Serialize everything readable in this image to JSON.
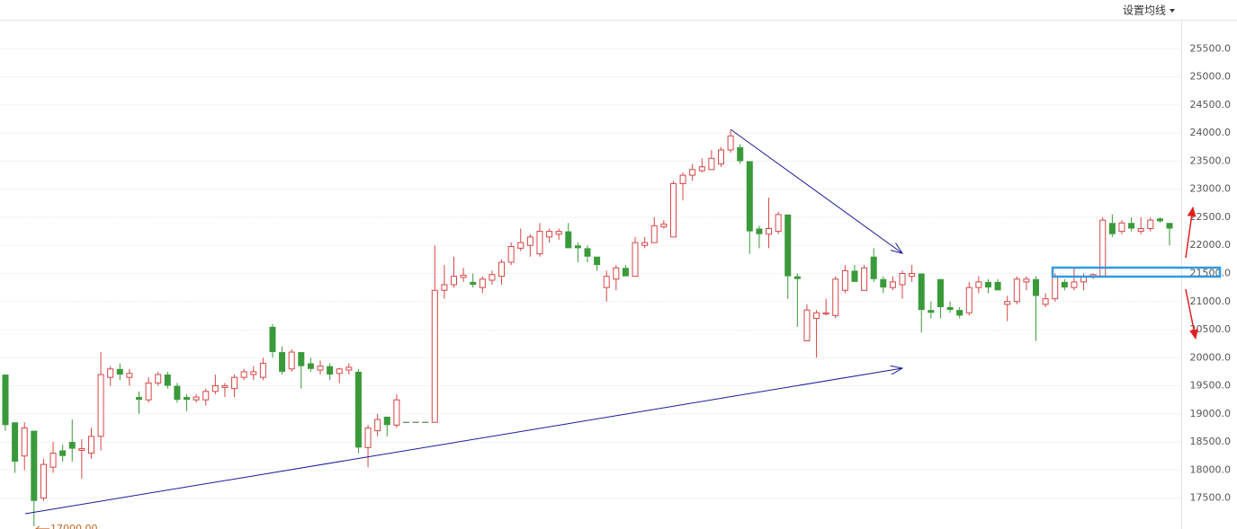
{
  "toolbar_button": "设置均线",
  "chart_data": {
    "type": "candlestick",
    "up_color": "#d64545",
    "down_color": "#3a9a3a",
    "flat_color": "#2f6b2f",
    "grid": true,
    "ylim": [
      16950,
      26370
    ],
    "yticks": [
      {
        "value": 17500,
        "label": "17500.0"
      },
      {
        "value": 18000,
        "label": "18000.0"
      },
      {
        "value": 18500,
        "label": "18500.0"
      },
      {
        "value": 19000,
        "label": "19000.0"
      },
      {
        "value": 19500,
        "label": "19500.0"
      },
      {
        "value": 20000,
        "label": "20000.0"
      },
      {
        "value": 20500,
        "label": "20500.0"
      },
      {
        "value": 21000,
        "label": "21000.0"
      },
      {
        "value": 21500,
        "label": "21500.0"
      },
      {
        "value": 22000,
        "label": "22000.0"
      },
      {
        "value": 22500,
        "label": "22500.0"
      },
      {
        "value": 23000,
        "label": "23000.0"
      },
      {
        "value": 23500,
        "label": "23500.0"
      },
      {
        "value": 24000,
        "label": "24000.0"
      },
      {
        "value": 24500,
        "label": "24500.0"
      },
      {
        "value": 25000,
        "label": "25000.0"
      },
      {
        "value": 25500,
        "label": "25500.0"
      }
    ],
    "min_label": {
      "value": 17000,
      "label": "17000.00"
    },
    "open": [
      19700,
      18850,
      18250,
      18700,
      17500,
      18050,
      18350,
      18500,
      18350,
      18300,
      18600,
      19650,
      19800,
      19650,
      19300,
      19250,
      19550,
      19700,
      19500,
      19300,
      19250,
      19250,
      19400,
      19470,
      19450,
      19650,
      19700,
      19650,
      20550,
      20100,
      19800,
      20100,
      19900,
      19780,
      19850,
      19720,
      19780,
      19750,
      18400,
      18700,
      18950,
      18800,
      18850,
      18850,
      18850,
      18850,
      21200,
      21300,
      21430,
      21350,
      21250,
      21380,
      21450,
      21700,
      21950,
      22000,
      21850,
      22150,
      22200,
      22250,
      22000,
      21950,
      21800,
      21250,
      21400,
      21600,
      21450,
      22000,
      22050,
      22330,
      22150,
      23100,
      23250,
      23330,
      23350,
      23450,
      23700,
      23750,
      23500,
      22300,
      22200,
      22250,
      22550,
      21450,
      20300,
      20700,
      20780,
      20750,
      21200,
      21550,
      21200,
      21800,
      21400,
      21250,
      21300,
      21450,
      21500,
      20850,
      21400,
      20900,
      20850,
      20800,
      21250,
      21350,
      21350,
      20950,
      21000,
      21350,
      21400,
      20950,
      21050,
      21350,
      21250,
      21350,
      21450,
      21450,
      22400,
      22250,
      22400,
      22250,
      22300,
      22480,
      22400
    ],
    "high": [
      19700,
      18850,
      18850,
      18700,
      18200,
      18500,
      18450,
      18900,
      18550,
      18750,
      20100,
      19850,
      19900,
      19800,
      19400,
      19650,
      19750,
      19750,
      19550,
      19350,
      19350,
      19450,
      19700,
      19550,
      19700,
      19800,
      19850,
      20000,
      20600,
      20200,
      20150,
      20100,
      20000,
      19950,
      19900,
      19820,
      19900,
      19800,
      18800,
      19000,
      18950,
      19350,
      18850,
      18850,
      18850,
      22000,
      21650,
      21800,
      21600,
      21500,
      21450,
      21550,
      21750,
      22050,
      22300,
      22200,
      22400,
      22300,
      22300,
      22400,
      22050,
      22000,
      21800,
      21550,
      21650,
      21650,
      22150,
      22150,
      22500,
      22450,
      23150,
      23300,
      23450,
      23550,
      23700,
      23750,
      24050,
      23800,
      23500,
      22350,
      22850,
      22600,
      22550,
      21500,
      20950,
      20850,
      21050,
      21450,
      21650,
      21650,
      21650,
      21950,
      21450,
      21450,
      21550,
      21650,
      21500,
      21000,
      21400,
      21000,
      20900,
      21350,
      21450,
      21400,
      21400,
      21100,
      21450,
      21450,
      21450,
      21150,
      21500,
      21400,
      21600,
      21500,
      21500,
      22500,
      22550,
      22450,
      22500,
      22500,
      22500,
      22500,
      22400
    ],
    "low": [
      18700,
      17950,
      18000,
      17000,
      17450,
      17950,
      18150,
      18150,
      17850,
      18200,
      18350,
      19500,
      19600,
      19500,
      19000,
      19200,
      19500,
      19450,
      19200,
      19050,
      19200,
      19150,
      19350,
      19300,
      19300,
      19600,
      19600,
      19600,
      20000,
      19700,
      19750,
      19450,
      19750,
      19700,
      19600,
      19550,
      19700,
      18300,
      18050,
      18600,
      18600,
      18750,
      18850,
      18850,
      18850,
      18850,
      21050,
      21250,
      21350,
      21250,
      21150,
      21300,
      21300,
      21650,
      21900,
      21800,
      21800,
      22050,
      22100,
      21950,
      21700,
      21700,
      21550,
      21000,
      21200,
      21450,
      21450,
      21950,
      22050,
      22300,
      22150,
      22800,
      23150,
      23300,
      23350,
      23400,
      23650,
      23450,
      21850,
      21950,
      21950,
      22200,
      21050,
      20550,
      20300,
      20000,
      20750,
      20700,
      21150,
      21350,
      21200,
      21350,
      21150,
      21200,
      21050,
      21350,
      20450,
      20700,
      20700,
      20800,
      20700,
      20750,
      21150,
      21150,
      21200,
      20650,
      20950,
      21200,
      20300,
      20900,
      21000,
      21200,
      21200,
      21200,
      21400,
      21450,
      22150,
      22200,
      22250,
      22200,
      22250,
      22400,
      22000
    ],
    "close": [
      18800,
      18150,
      18750,
      17450,
      18100,
      18300,
      18250,
      18380,
      18380,
      18600,
      19700,
      19800,
      19700,
      19720,
      19250,
      19550,
      19700,
      19500,
      19250,
      19250,
      19300,
      19400,
      19500,
      19500,
      19650,
      19750,
      19750,
      19900,
      20100,
      19750,
      20100,
      19850,
      19800,
      19850,
      19700,
      19800,
      19830,
      18400,
      18750,
      18900,
      18800,
      19250,
      18850,
      18850,
      18850,
      21200,
      21300,
      21450,
      21470,
      21300,
      21400,
      21480,
      21700,
      21980,
      22050,
      22150,
      22250,
      22250,
      22250,
      21950,
      21950,
      21800,
      21650,
      21450,
      21600,
      21450,
      22050,
      22050,
      22350,
      22380,
      23100,
      23250,
      23350,
      23400,
      23550,
      23700,
      23950,
      23500,
      22250,
      22200,
      22300,
      22550,
      21450,
      21400,
      20850,
      20800,
      20800,
      21400,
      21550,
      21350,
      21600,
      21400,
      21250,
      21350,
      21500,
      21500,
      20850,
      20800,
      20900,
      20850,
      20750,
      21250,
      21350,
      21250,
      21200,
      21000,
      21400,
      21400,
      21100,
      21050,
      21450,
      21250,
      21350,
      21450,
      21480,
      22450,
      22200,
      22400,
      22300,
      22300,
      22450,
      22430,
      22300
    ]
  }
}
